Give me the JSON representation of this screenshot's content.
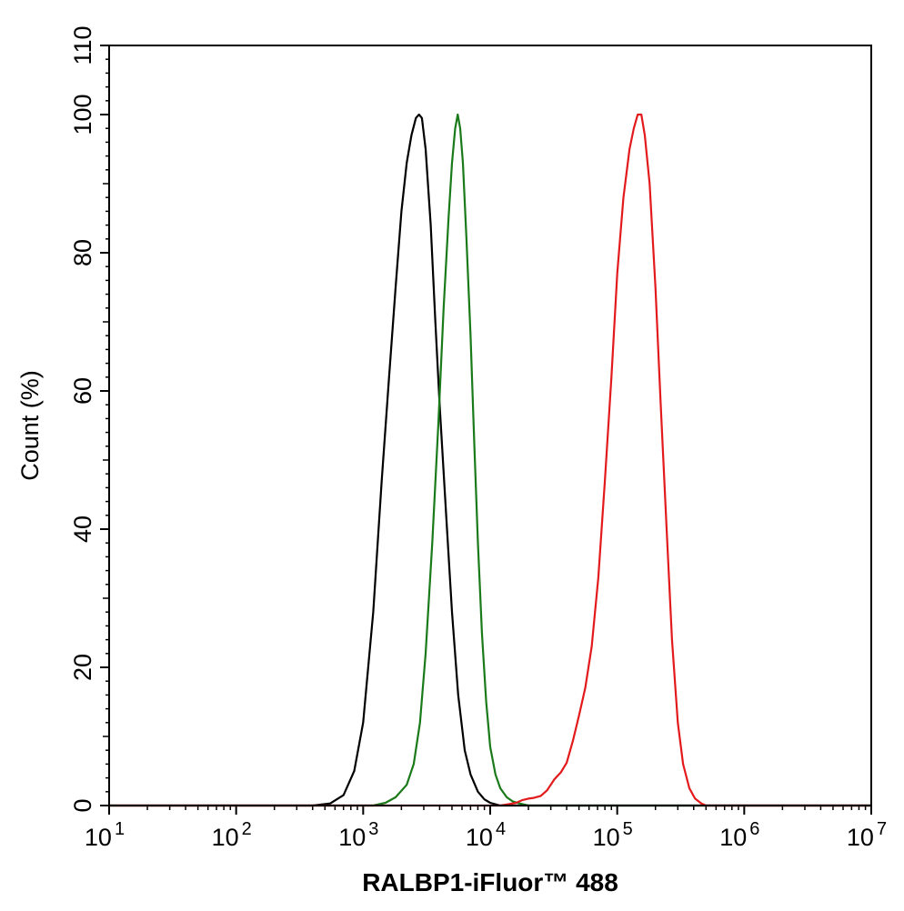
{
  "chart_data": {
    "type": "line",
    "title": "",
    "xlabel": "RALBP1-iFluor™ 488",
    "ylabel": "Count  (%)",
    "x_scale": "log",
    "xlim": [
      10,
      10000000
    ],
    "ylim": [
      0,
      110
    ],
    "x_ticks": [
      {
        "base": "10",
        "exp": "1"
      },
      {
        "base": "10",
        "exp": "2"
      },
      {
        "base": "10",
        "exp": "3"
      },
      {
        "base": "10",
        "exp": "4"
      },
      {
        "base": "10",
        "exp": "5"
      },
      {
        "base": "10",
        "exp": "6"
      },
      {
        "base": "10",
        "exp": "7"
      }
    ],
    "y_ticks": [
      "0",
      "20",
      "40",
      "60",
      "80",
      "100",
      "110"
    ],
    "grid": false,
    "legend": "none",
    "series": [
      {
        "color": "#000000",
        "points": [
          [
            10,
            0
          ],
          [
            400,
            0
          ],
          [
            550,
            0.3
          ],
          [
            700,
            1.5
          ],
          [
            850,
            5
          ],
          [
            1000,
            12
          ],
          [
            1200,
            28
          ],
          [
            1400,
            47
          ],
          [
            1600,
            62
          ],
          [
            1800,
            75
          ],
          [
            2000,
            86
          ],
          [
            2200,
            93
          ],
          [
            2400,
            97
          ],
          [
            2600,
            99.5
          ],
          [
            2750,
            100
          ],
          [
            2900,
            99.5
          ],
          [
            3100,
            95
          ],
          [
            3400,
            84
          ],
          [
            3700,
            70
          ],
          [
            4000,
            58
          ],
          [
            4500,
            42
          ],
          [
            5000,
            28
          ],
          [
            5600,
            16
          ],
          [
            6300,
            8
          ],
          [
            7000,
            4.5
          ],
          [
            8000,
            2
          ],
          [
            9000,
            0.9
          ],
          [
            10000,
            0.4
          ],
          [
            12000,
            0
          ],
          [
            10000000,
            0
          ]
        ]
      },
      {
        "color": "#1a7a1a",
        "points": [
          [
            10,
            0
          ],
          [
            1200,
            0
          ],
          [
            1500,
            0.4
          ],
          [
            1800,
            1.2
          ],
          [
            2200,
            3
          ],
          [
            2500,
            6
          ],
          [
            2800,
            12
          ],
          [
            3100,
            22
          ],
          [
            3500,
            38
          ],
          [
            3900,
            55
          ],
          [
            4300,
            72
          ],
          [
            4700,
            85
          ],
          [
            5000,
            93
          ],
          [
            5300,
            98
          ],
          [
            5550,
            100
          ],
          [
            5800,
            98
          ],
          [
            6100,
            93
          ],
          [
            6500,
            82
          ],
          [
            7000,
            68
          ],
          [
            7500,
            52
          ],
          [
            8000,
            38
          ],
          [
            8600,
            25
          ],
          [
            9300,
            15
          ],
          [
            10000,
            8.5
          ],
          [
            11000,
            4.5
          ],
          [
            12000,
            2.5
          ],
          [
            13500,
            1.2
          ],
          [
            15000,
            0.6
          ],
          [
            17000,
            0.3
          ],
          [
            20000,
            0
          ],
          [
            10000000,
            0
          ]
        ]
      },
      {
        "color": "#e31a1c",
        "points": [
          [
            10,
            0
          ],
          [
            12000,
            0
          ],
          [
            14000,
            0.2
          ],
          [
            16000,
            0.4
          ],
          [
            18000,
            0.8
          ],
          [
            20000,
            1
          ],
          [
            22000,
            1.1
          ],
          [
            25000,
            1.4
          ],
          [
            28000,
            2.2
          ],
          [
            32000,
            3.8
          ],
          [
            36000,
            4.8
          ],
          [
            40000,
            6.2
          ],
          [
            45000,
            9.5
          ],
          [
            50000,
            13
          ],
          [
            56000,
            17
          ],
          [
            63000,
            23
          ],
          [
            71000,
            33
          ],
          [
            80000,
            47
          ],
          [
            90000,
            62
          ],
          [
            100000,
            77
          ],
          [
            112000,
            88
          ],
          [
            125000,
            95
          ],
          [
            135000,
            98
          ],
          [
            145000,
            100
          ],
          [
            155000,
            100
          ],
          [
            165000,
            97
          ],
          [
            180000,
            90
          ],
          [
            200000,
            75
          ],
          [
            220000,
            58
          ],
          [
            245000,
            40
          ],
          [
            270000,
            24
          ],
          [
            300000,
            12
          ],
          [
            330000,
            6
          ],
          [
            370000,
            2.5
          ],
          [
            410000,
            1
          ],
          [
            460000,
            0.3
          ],
          [
            500000,
            0
          ],
          [
            10000000,
            0
          ]
        ]
      }
    ]
  }
}
